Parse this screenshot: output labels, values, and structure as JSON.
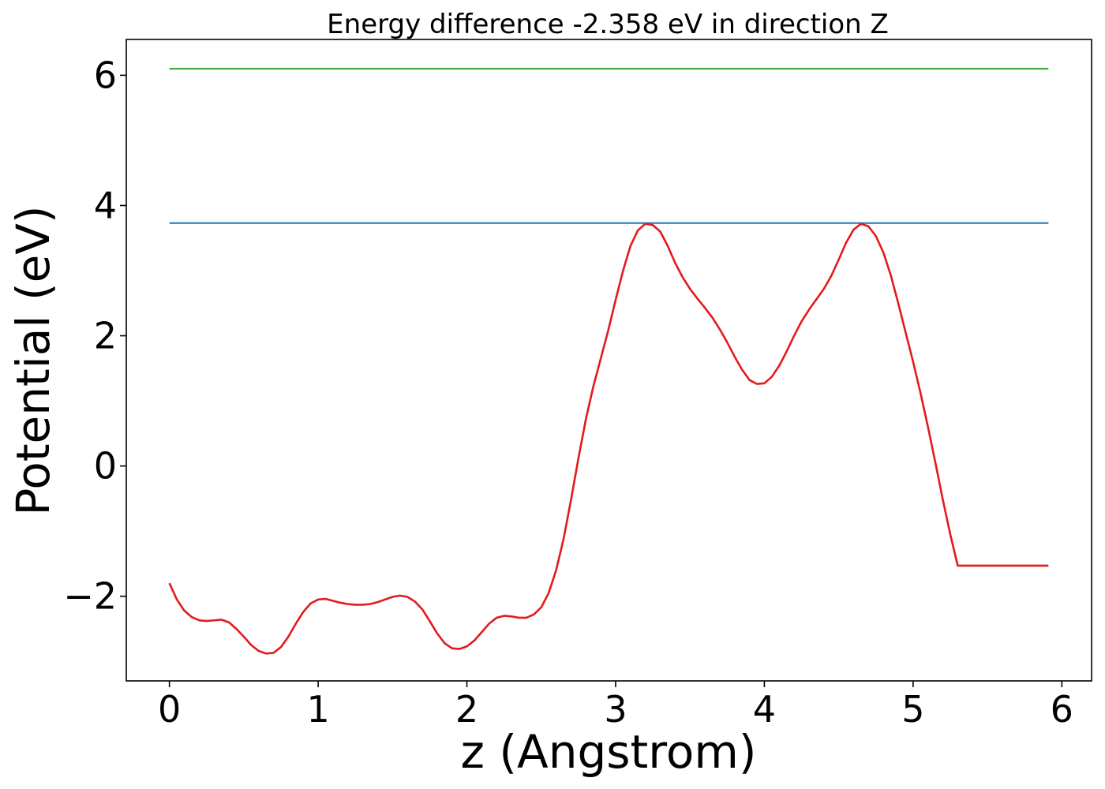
{
  "chart_data": {
    "type": "line",
    "title": "Energy difference -2.358 eV in direction Z",
    "xlabel": "z (Angstrom)",
    "ylabel": "Potential (eV)",
    "xlim": [
      -0.29,
      6.2
    ],
    "ylim": [
      -3.3,
      6.55
    ],
    "xticks": [
      {
        "value": 0,
        "label": "0"
      },
      {
        "value": 1,
        "label": "1"
      },
      {
        "value": 2,
        "label": "2"
      },
      {
        "value": 3,
        "label": "3"
      },
      {
        "value": 4,
        "label": "4"
      },
      {
        "value": 5,
        "label": "5"
      },
      {
        "value": 6,
        "label": "6"
      }
    ],
    "yticks": [
      {
        "value": -2,
        "label": "−2"
      },
      {
        "value": 0,
        "label": "0"
      },
      {
        "value": 2,
        "label": "2"
      },
      {
        "value": 4,
        "label": "4"
      },
      {
        "value": 6,
        "label": "6"
      }
    ],
    "grid": false,
    "series": [
      {
        "color": "#2ca02c",
        "x": [
          0,
          5.91
        ],
        "y": [
          6.1,
          6.1
        ]
      },
      {
        "color": "#1f77b4",
        "x": [
          0,
          5.91
        ],
        "y": [
          3.73,
          3.73
        ]
      },
      {
        "color": "#e31a1c",
        "x": [
          0,
          0.05,
          0.1,
          0.15,
          0.2,
          0.25,
          0.3,
          0.35,
          0.4,
          0.45,
          0.5,
          0.55,
          0.6,
          0.65,
          0.7,
          0.75,
          0.8,
          0.85,
          0.9,
          0.95,
          1.0,
          1.05,
          1.1,
          1.15,
          1.2,
          1.25,
          1.3,
          1.35,
          1.4,
          1.45,
          1.5,
          1.55,
          1.6,
          1.65,
          1.7,
          1.75,
          1.8,
          1.85,
          1.9,
          1.95,
          2.0,
          2.05,
          2.1,
          2.15,
          2.2,
          2.25,
          2.3,
          2.35,
          2.4,
          2.45,
          2.5,
          2.55,
          2.6,
          2.65,
          2.7,
          2.75,
          2.8,
          2.85,
          2.9,
          2.95,
          3.0,
          3.05,
          3.1,
          3.15,
          3.2,
          3.25,
          3.3,
          3.35,
          3.4,
          3.45,
          3.5,
          3.55,
          3.6,
          3.65,
          3.7,
          3.75,
          3.8,
          3.85,
          3.9,
          3.95,
          4.0,
          4.05,
          4.1,
          4.15,
          4.2,
          4.25,
          4.3,
          4.35,
          4.4,
          4.45,
          4.5,
          4.55,
          4.6,
          4.65,
          4.7,
          4.75,
          4.8,
          4.85,
          4.9,
          4.95,
          5.0,
          5.05,
          5.1,
          5.15,
          5.2,
          5.25,
          5.3,
          5.35,
          5.4,
          5.45,
          5.5,
          5.55,
          5.6,
          5.65,
          5.7,
          5.75,
          5.8,
          5.85,
          5.91
        ],
        "y": [
          -1.8,
          -2.05,
          -2.22,
          -2.32,
          -2.37,
          -2.38,
          -2.37,
          -2.36,
          -2.4,
          -2.5,
          -2.62,
          -2.75,
          -2.84,
          -2.88,
          -2.87,
          -2.78,
          -2.62,
          -2.42,
          -2.24,
          -2.11,
          -2.05,
          -2.04,
          -2.07,
          -2.1,
          -2.12,
          -2.13,
          -2.13,
          -2.12,
          -2.09,
          -2.05,
          -2.01,
          -1.99,
          -2.01,
          -2.08,
          -2.2,
          -2.38,
          -2.57,
          -2.72,
          -2.8,
          -2.81,
          -2.77,
          -2.68,
          -2.55,
          -2.42,
          -2.33,
          -2.3,
          -2.31,
          -2.33,
          -2.33,
          -2.28,
          -2.17,
          -1.95,
          -1.6,
          -1.12,
          -0.52,
          0.12,
          0.72,
          1.22,
          1.65,
          2.08,
          2.55,
          3.0,
          3.38,
          3.62,
          3.72,
          3.7,
          3.6,
          3.38,
          3.12,
          2.9,
          2.72,
          2.57,
          2.43,
          2.28,
          2.1,
          1.9,
          1.68,
          1.48,
          1.32,
          1.26,
          1.27,
          1.37,
          1.54,
          1.76,
          2.0,
          2.22,
          2.4,
          2.56,
          2.72,
          2.92,
          3.17,
          3.43,
          3.63,
          3.72,
          3.68,
          3.53,
          3.28,
          2.93,
          2.5,
          2.05,
          1.6,
          1.12,
          0.6,
          0.05,
          -0.52,
          -1.05,
          -1.53,
          -1.53,
          -1.53,
          -1.53,
          -1.53,
          -1.53,
          -1.53,
          -1.53,
          -1.53,
          -1.53,
          -1.53,
          -1.53,
          -1.53
        ]
      }
    ]
  }
}
